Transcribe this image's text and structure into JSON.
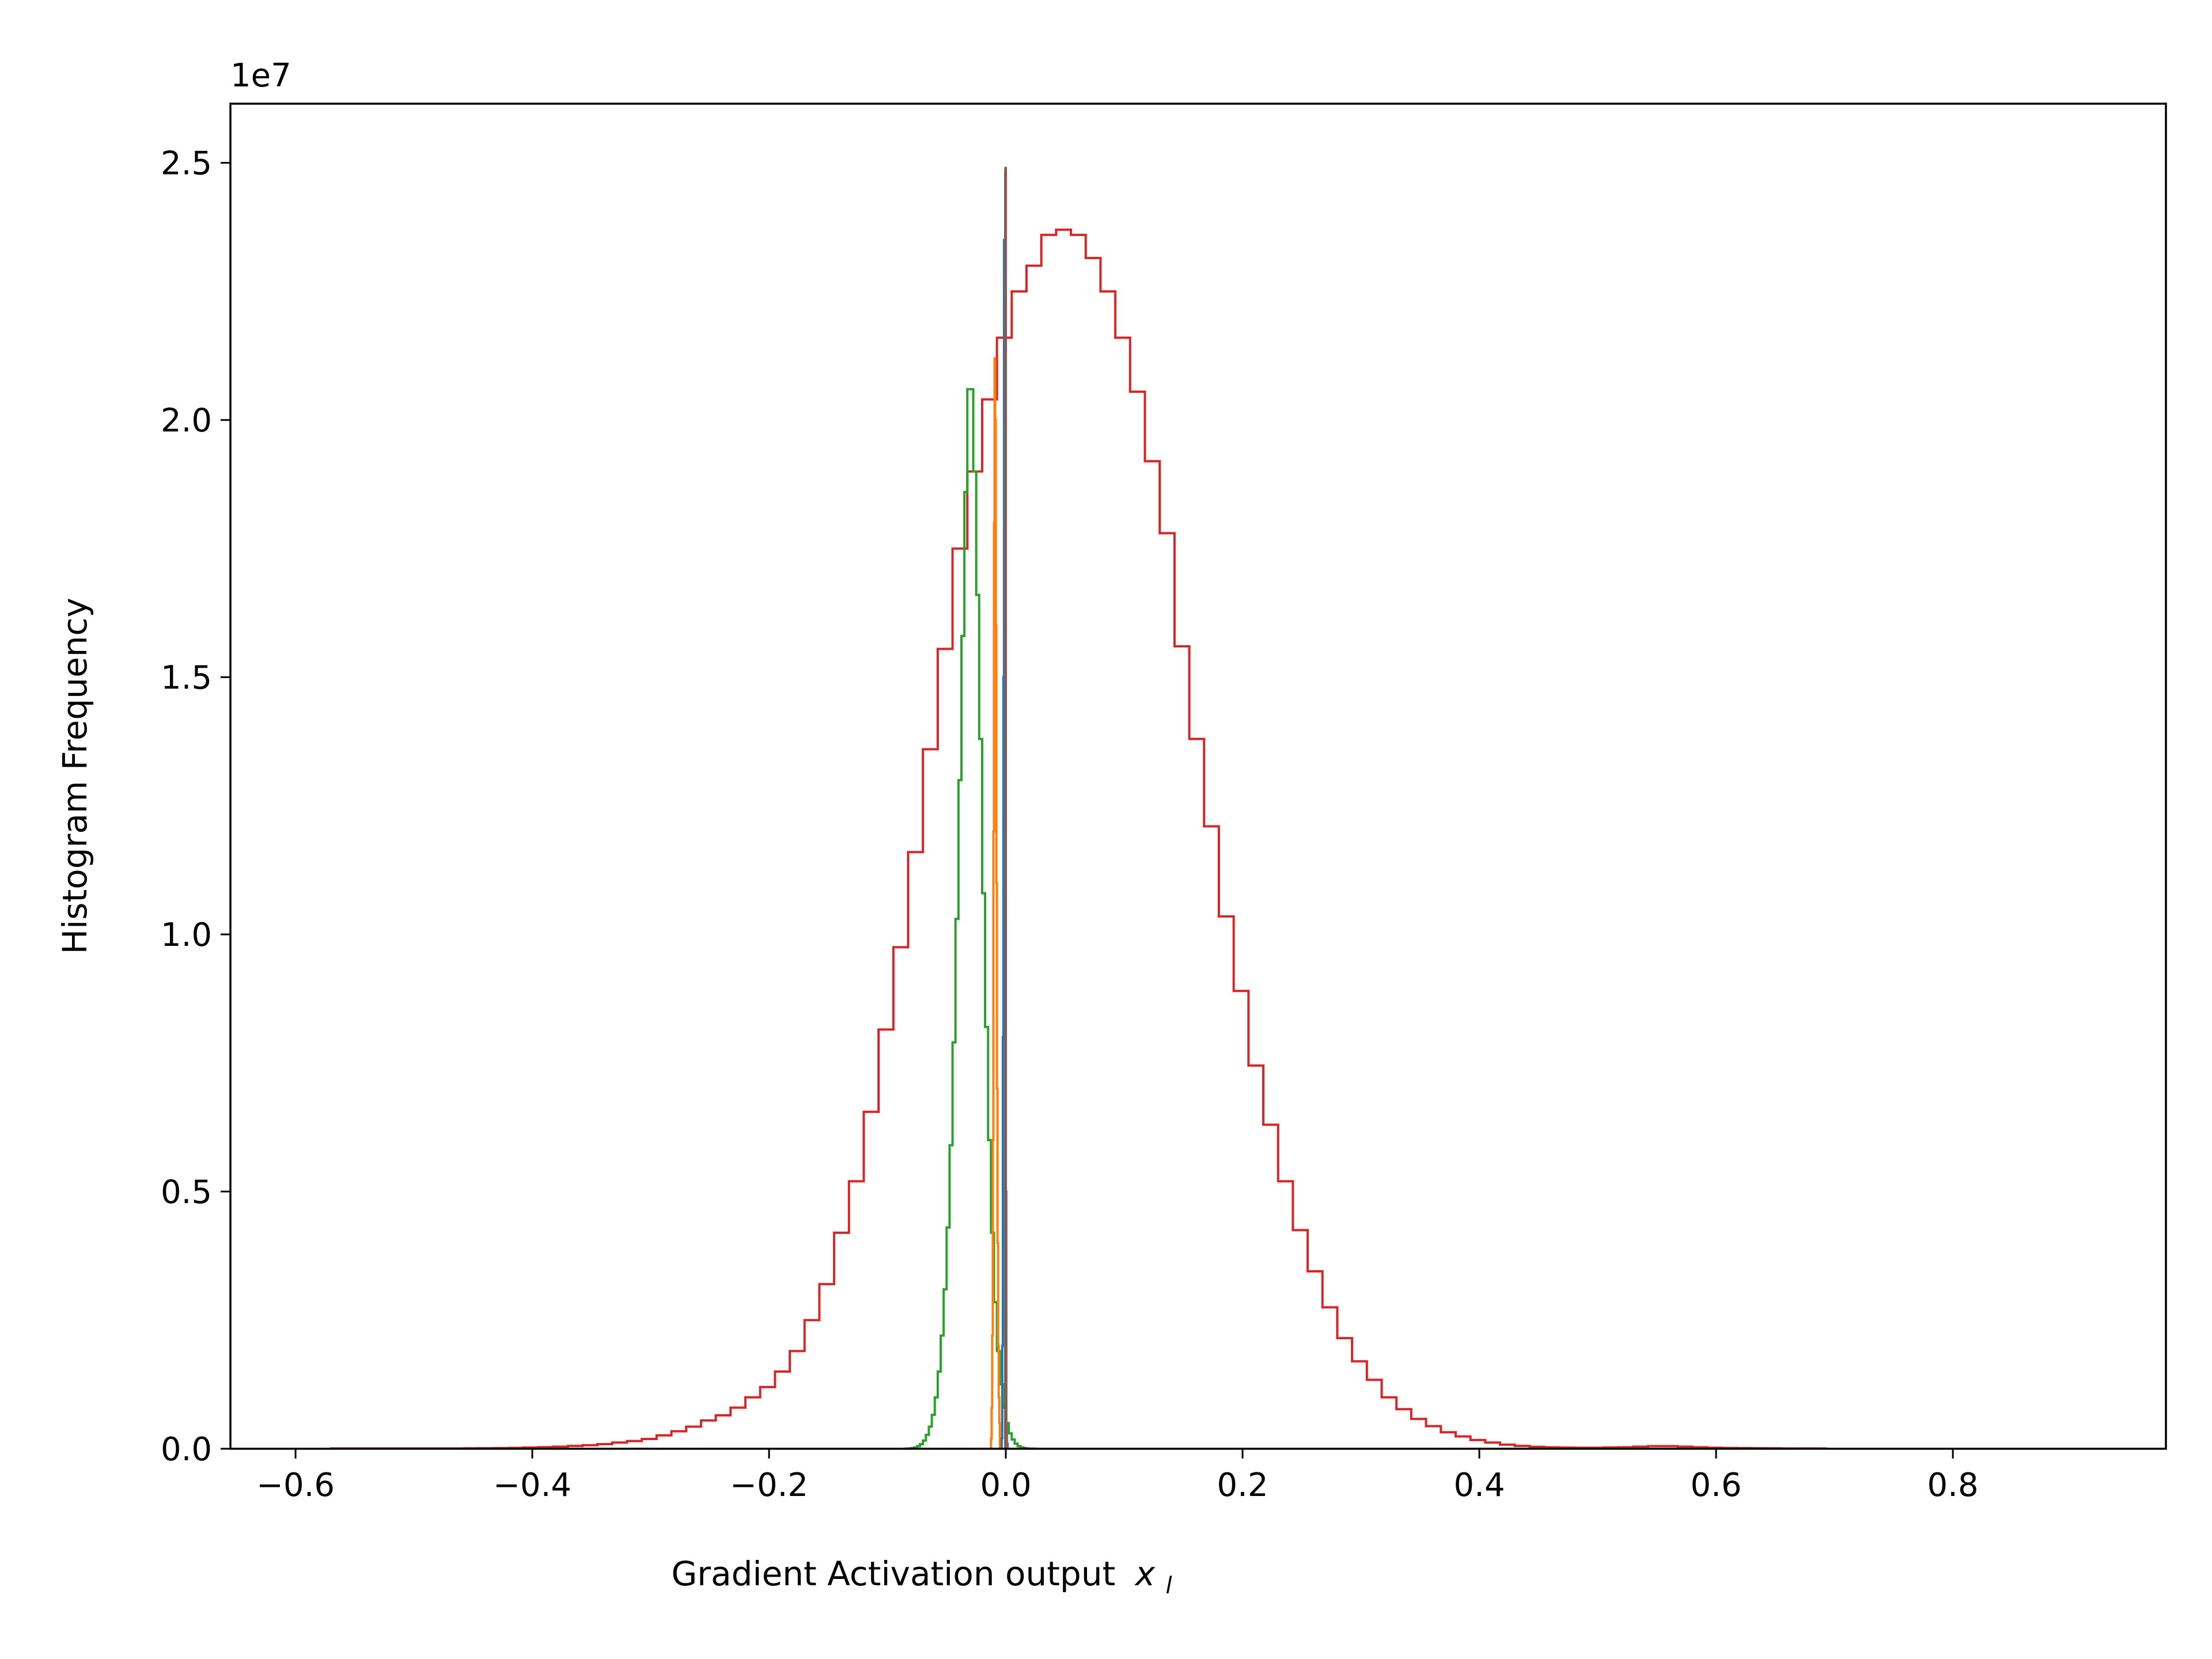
{
  "chart_data": {
    "type": "histogram",
    "title": "",
    "xlabel": "Gradient Activation output",
    "xlabel_math": "x",
    "xlabel_math_sub": "l",
    "ylabel": "Histogram Frequency",
    "y_offset_label": "1e7",
    "y_scale": 10000000,
    "xlim": [
      -0.655,
      0.98
    ],
    "ylim": [
      0,
      2.615
    ],
    "x_ticks": [
      {
        "value": -0.6,
        "label": "−0.6"
      },
      {
        "value": -0.4,
        "label": "−0.4"
      },
      {
        "value": -0.2,
        "label": "−0.2"
      },
      {
        "value": 0.0,
        "label": "0.0"
      },
      {
        "value": 0.2,
        "label": "0.2"
      },
      {
        "value": 0.4,
        "label": "0.4"
      },
      {
        "value": 0.6,
        "label": "0.6"
      },
      {
        "value": 0.8,
        "label": "0.8"
      }
    ],
    "y_ticks": [
      {
        "value": 0.0,
        "label": "0.0"
      },
      {
        "value": 0.5,
        "label": "0.5"
      },
      {
        "value": 1.0,
        "label": "1.0"
      },
      {
        "value": 1.5,
        "label": "1.5"
      },
      {
        "value": 2.0,
        "label": "2.0"
      },
      {
        "value": 2.5,
        "label": "2.5"
      }
    ],
    "grid": false,
    "legend": "none",
    "series": [
      {
        "key": "red",
        "color": "#d62728",
        "bins": {
          "start": -0.57,
          "width": 0.0125
        },
        "values": [
          0.0005,
          0.0005,
          0.0005,
          0.0005,
          0.0005,
          0.0005,
          0.0005,
          0.0005,
          0.0006,
          0.0008,
          0.001,
          0.0013,
          0.0017,
          0.0024,
          0.0031,
          0.004,
          0.0054,
          0.0068,
          0.009,
          0.012,
          0.015,
          0.019,
          0.026,
          0.034,
          0.043,
          0.055,
          0.065,
          0.08,
          0.1,
          0.12,
          0.15,
          0.19,
          0.25,
          0.32,
          0.42,
          0.52,
          0.655,
          0.815,
          0.975,
          1.16,
          1.36,
          1.555,
          1.75,
          1.9,
          2.04,
          2.16,
          2.25,
          2.3,
          2.36,
          2.37,
          2.36,
          2.315,
          2.25,
          2.16,
          2.055,
          1.92,
          1.78,
          1.56,
          1.38,
          1.21,
          1.035,
          0.89,
          0.745,
          0.63,
          0.52,
          0.425,
          0.345,
          0.275,
          0.215,
          0.17,
          0.134,
          0.1,
          0.077,
          0.058,
          0.044,
          0.032,
          0.024,
          0.017,
          0.012,
          0.008,
          0.0055,
          0.0038,
          0.0028,
          0.0022,
          0.002,
          0.002,
          0.0025,
          0.003,
          0.004,
          0.005,
          0.005,
          0.004,
          0.003,
          0.002,
          0.0015,
          0.0012,
          0.001,
          0.0008,
          0.0006,
          0.0005,
          0.0005
        ]
      },
      {
        "key": "green",
        "color": "#2ca02c",
        "bins": {
          "start": -0.085,
          "width": 0.0025
        },
        "values": [
          0.0003,
          0.0006,
          0.0012,
          0.0025,
          0.005,
          0.009,
          0.016,
          0.027,
          0.043,
          0.066,
          0.1,
          0.15,
          0.22,
          0.31,
          0.43,
          0.59,
          0.79,
          1.03,
          1.3,
          1.58,
          1.86,
          2.06,
          2.06,
          1.9,
          1.66,
          1.38,
          1.08,
          0.82,
          0.6,
          0.42,
          0.285,
          0.19,
          0.125,
          0.08,
          0.05,
          0.03,
          0.018,
          0.01,
          0.005,
          0.0025,
          0.0012,
          0.0006,
          0.0003,
          0.0001
        ]
      },
      {
        "key": "orange",
        "color": "#ff7f0e",
        "bins": {
          "start": -0.0125,
          "width": 0.0005
        },
        "values": [
          0.02,
          0.08,
          0.22,
          0.6,
          1.2,
          1.8,
          2.12,
          2.0,
          1.6,
          1.1,
          0.7,
          0.4,
          0.2,
          0.1,
          0.05
        ]
      },
      {
        "key": "blue",
        "color": "#1f77b4",
        "bins": {
          "start": -0.0035,
          "width": 0.0005
        },
        "values": [
          0.02,
          0.2,
          0.8,
          1.5,
          2.35,
          1.7,
          1.0,
          0.3,
          0.05,
          0.01
        ]
      },
      {
        "key": "gray",
        "color": "#7f7f7f",
        "bins": {
          "start": -0.0005,
          "width": 0.0005
        },
        "values": [
          2.48,
          0.5
        ]
      },
      {
        "key": "brown",
        "color": "#8c564b",
        "bins": {
          "start": -0.0003,
          "width": 0.0003
        },
        "values": [
          2.49
        ]
      }
    ]
  }
}
